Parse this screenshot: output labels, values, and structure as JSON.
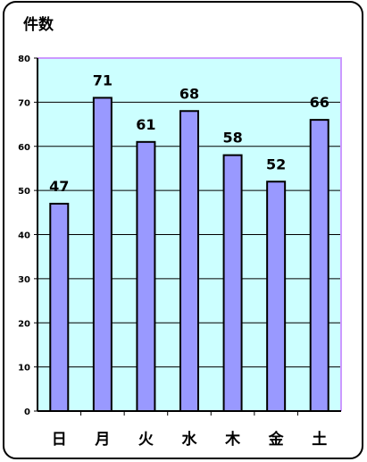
{
  "chart_data": {
    "type": "bar",
    "ylabel": "件数",
    "xlabel": "",
    "categories": [
      "日",
      "月",
      "火",
      "水",
      "木",
      "金",
      "土"
    ],
    "values": [
      47,
      71,
      61,
      68,
      58,
      52,
      66
    ],
    "ylim": [
      0,
      80
    ],
    "yticks": [
      0,
      10,
      20,
      30,
      40,
      50,
      60,
      70,
      80
    ],
    "grid": true,
    "data_labels": true,
    "colors": {
      "plot_background": "#ccffff",
      "plot_border": "#cc99ff",
      "bar_fill": "#9999ff",
      "bar_stroke": "#000000",
      "gridline": "#000000",
      "frame": "#000000"
    }
  }
}
